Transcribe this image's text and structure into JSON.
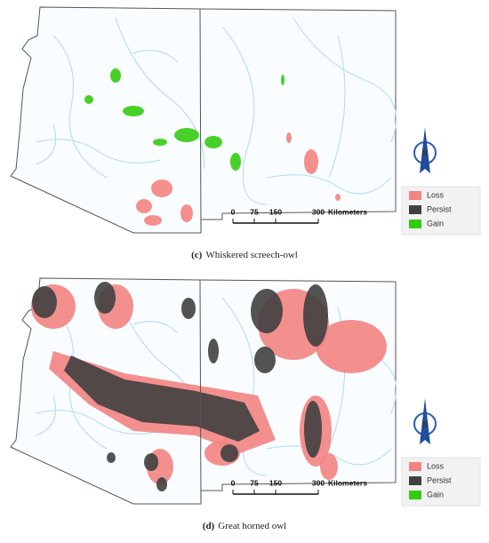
{
  "panels": [
    {
      "caption_label": "(c)",
      "caption_text": "Whiskered screech-owl",
      "legend": [
        {
          "label": "Loss",
          "color": "#f28482"
        },
        {
          "label": "Persist",
          "color": "#404040"
        },
        {
          "label": "Gain",
          "color": "#33cc11"
        }
      ],
      "scale_bar": {
        "ticks": [
          0,
          75,
          150,
          300
        ],
        "unit": "Kilometers"
      },
      "north_label": "N"
    },
    {
      "caption_label": "(d)",
      "caption_text": "Great horned owl",
      "legend": [
        {
          "label": "Loss",
          "color": "#f28482"
        },
        {
          "label": "Persist",
          "color": "#404040"
        },
        {
          "label": "Gain",
          "color": "#33cc11"
        }
      ],
      "scale_bar": {
        "ticks": [
          0,
          75,
          150,
          300
        ],
        "unit": "Kilometers"
      },
      "north_label": "N"
    }
  ]
}
